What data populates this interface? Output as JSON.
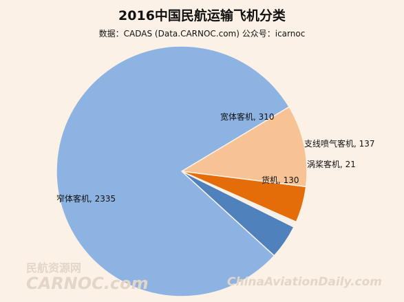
{
  "chart_data": {
    "type": "pie",
    "title": "2016中国民航运输飞机分类",
    "subtitle": "数据：CADAS (Data.CARNOC.com) 公众号：icarnoc",
    "slices": [
      {
        "label": "宽体客机",
        "value": 310,
        "display": "宽体客机, 310",
        "color": "#f8c394"
      },
      {
        "label": "支线喷气客机",
        "value": 137,
        "display": "支线喷气客机, 137",
        "color": "#e46d0a"
      },
      {
        "label": "涡桨客机",
        "value": 21,
        "display": "涡桨客机, 21",
        "color": "#f5f0ea"
      },
      {
        "label": "货机",
        "value": 130,
        "display": "货机, 130",
        "color": "#4f81bd"
      },
      {
        "label": "窄体客机",
        "value": 2335,
        "display": "窄体客机, 2335",
        "color": "#8db3e2"
      }
    ]
  },
  "watermarks": {
    "left_cn": "民航资源网",
    "left_en": "CARNOC.com",
    "right": "ChinaAviationDaily.com"
  }
}
